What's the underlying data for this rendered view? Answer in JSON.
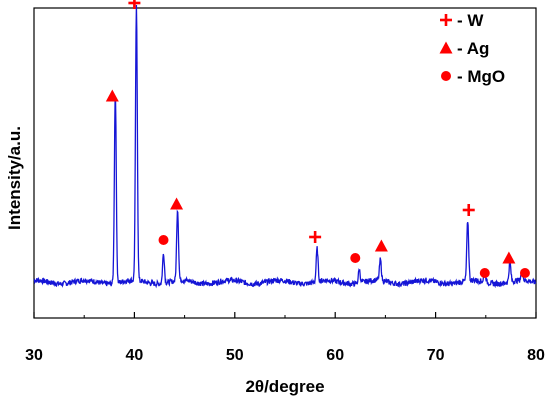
{
  "chart_data": {
    "type": "line",
    "title": "",
    "xlabel": "2θ/degree",
    "ylabel": "Intensity/a.u.",
    "xlim": [
      30,
      80
    ],
    "ylim": [
      0,
      100
    ],
    "xticks": [
      30,
      40,
      50,
      60,
      70,
      80
    ],
    "grid": false,
    "legend_position": "top-right",
    "series": [
      {
        "color": "#1515d6",
        "baseline": 12,
        "noise": 0.9,
        "peaks": [
          {
            "x": 38.1,
            "height": 64,
            "width": 0.13
          },
          {
            "x": 40.2,
            "height": 91,
            "width": 0.13
          },
          {
            "x": 42.9,
            "height": 10,
            "width": 0.13
          },
          {
            "x": 44.3,
            "height": 24,
            "width": 0.13
          },
          {
            "x": 58.2,
            "height": 11,
            "width": 0.13
          },
          {
            "x": 62.4,
            "height": 4.5,
            "width": 0.13
          },
          {
            "x": 64.5,
            "height": 7,
            "width": 0.13
          },
          {
            "x": 73.2,
            "height": 20,
            "width": 0.13
          },
          {
            "x": 74.9,
            "height": 3.5,
            "width": 0.13
          },
          {
            "x": 77.4,
            "height": 6.5,
            "width": 0.13
          },
          {
            "x": 78.6,
            "height": 3,
            "width": 0.13
          }
        ]
      }
    ],
    "markers": [
      {
        "phase": "W",
        "x": 40.0,
        "y": 105
      },
      {
        "phase": "W",
        "x": 58.0,
        "y": 27
      },
      {
        "phase": "W",
        "x": 73.3,
        "y": 36
      },
      {
        "phase": "Ag",
        "x": 37.8,
        "y": 74
      },
      {
        "phase": "Ag",
        "x": 44.2,
        "y": 38
      },
      {
        "phase": "Ag",
        "x": 64.6,
        "y": 24
      },
      {
        "phase": "Ag",
        "x": 77.3,
        "y": 20
      },
      {
        "phase": "MgO",
        "x": 42.9,
        "y": 26
      },
      {
        "phase": "MgO",
        "x": 62.0,
        "y": 20
      },
      {
        "phase": "MgO",
        "x": 74.9,
        "y": 15
      },
      {
        "phase": "MgO",
        "x": 78.9,
        "y": 15
      }
    ],
    "marker_color": "#ff0000",
    "legend": [
      {
        "symbol": "plus",
        "label": "- W"
      },
      {
        "symbol": "triangle",
        "label": "- Ag"
      },
      {
        "symbol": "circle",
        "label": "- MgO"
      }
    ]
  }
}
